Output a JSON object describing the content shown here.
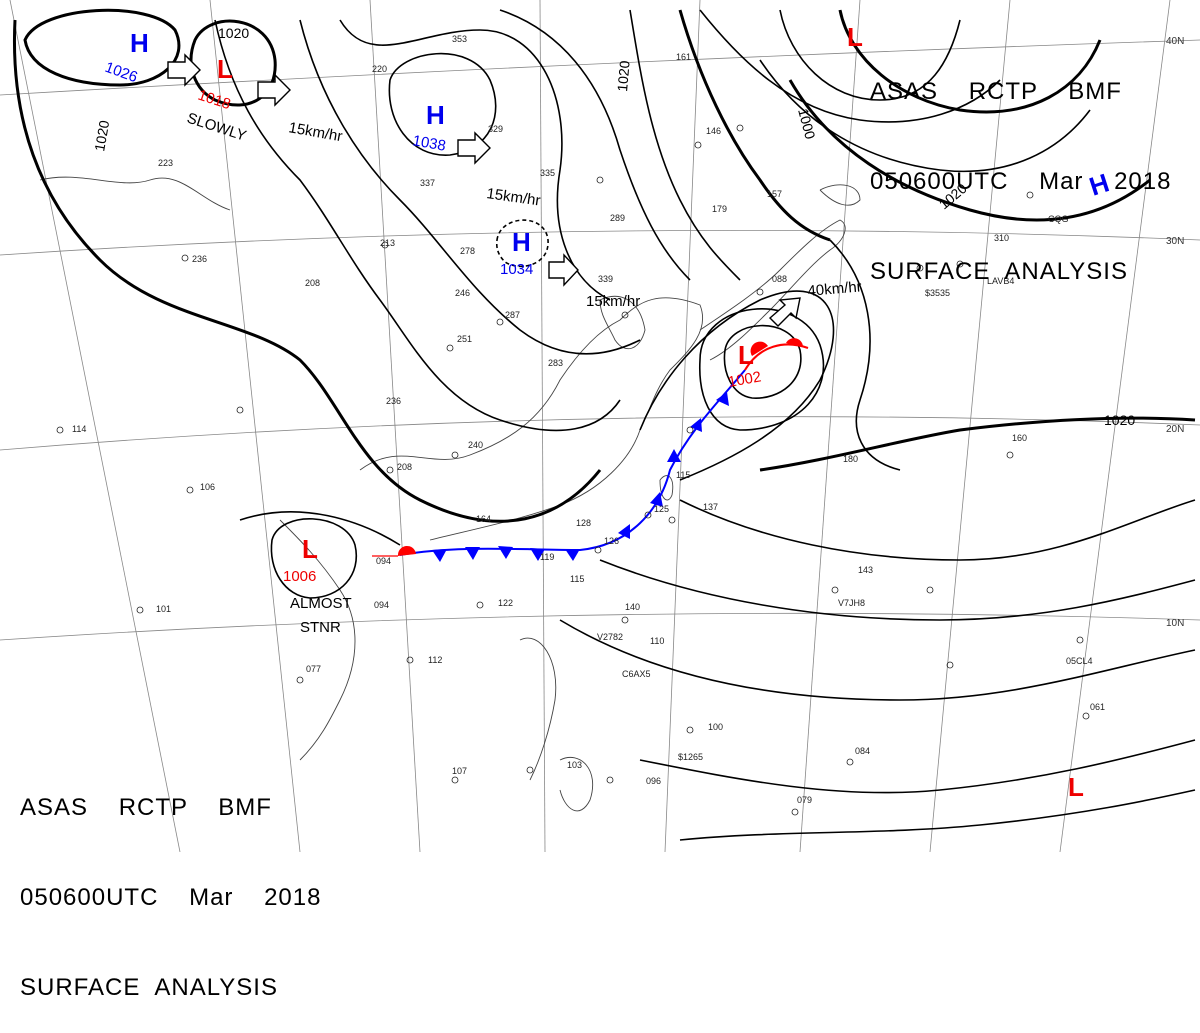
{
  "header": {
    "line1": "ASAS    RCTP    BMF",
    "line2": "050600UTC    Mar    2018",
    "line3": "SURFACE  ANALYSIS"
  },
  "pressure_centers": [
    {
      "type": "H",
      "value": "1026"
    },
    {
      "type": "L",
      "value": "1018"
    },
    {
      "type": "H",
      "value": "1038"
    },
    {
      "type": "H",
      "value": "1034"
    },
    {
      "type": "L",
      "value": "1006"
    },
    {
      "type": "L",
      "value": "1002"
    },
    {
      "type": "L",
      "value": ""
    },
    {
      "type": "H",
      "value": ""
    },
    {
      "type": "L",
      "value": ""
    }
  ],
  "movement_labels": {
    "slowly": "SLOWLY",
    "m1": "15km/hr",
    "m2": "15km/hr",
    "m3": "15km/hr",
    "m4": "40km/hr",
    "almost": "ALMOST",
    "stnr": "STNR"
  },
  "isobar_labels": {
    "a": "1020",
    "b": "1020",
    "c": "1020",
    "d": "1000",
    "e": "1020",
    "f": "1020"
  },
  "latitude_labels": [
    "40N",
    "30N",
    "20N",
    "10N"
  ],
  "station_values": [
    "223",
    "236",
    "208",
    "246",
    "213",
    "337",
    "278",
    "287",
    "251",
    "283",
    "236",
    "240",
    "208",
    "164",
    "128",
    "126",
    "125",
    "115",
    "137",
    "119",
    "115",
    "122",
    "094",
    "094",
    "112",
    "077",
    "107",
    "103",
    "101",
    "140",
    "110",
    "100",
    "084",
    "079",
    "061",
    "096",
    "143",
    "180",
    "160",
    "310",
    "146",
    "289",
    "179",
    "157",
    "088",
    "353",
    "329",
    "339",
    "335",
    "114",
    "106",
    "161",
    "220"
  ],
  "ship_ids": [
    "V7JH8",
    "C6AX5",
    "V2782",
    "$1265",
    "05CL4",
    "LAVB4",
    "$3535",
    "CQG"
  ],
  "colors": {
    "high": "#0000ee",
    "low": "#ee0000",
    "front_cold": "#0000ff",
    "front_warm": "#ff0000",
    "isobar": "#000000",
    "coast": "#333333",
    "grid": "#888888"
  }
}
